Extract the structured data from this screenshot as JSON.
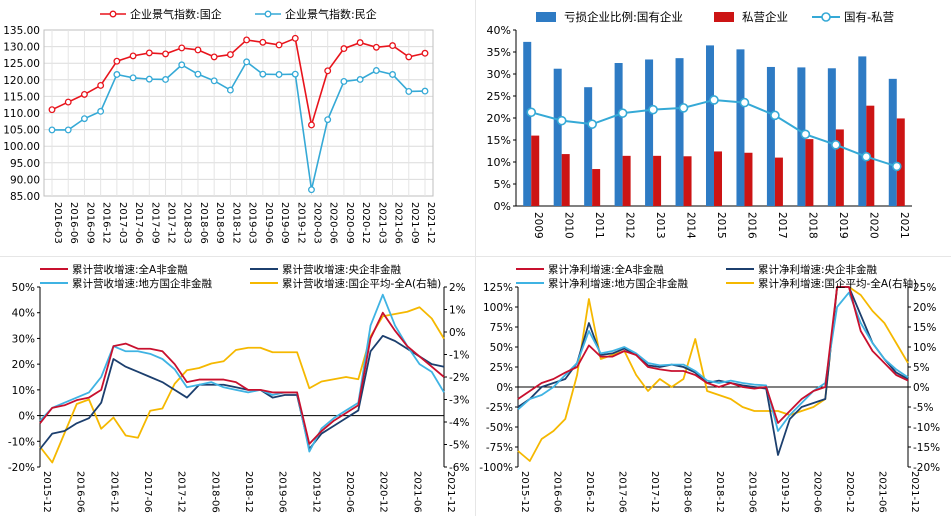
{
  "chart_data": [
    {
      "type": "line",
      "panel": "top-left",
      "title": "",
      "xlabel": "",
      "ylabel": "",
      "ylim": [
        85,
        135
      ],
      "yticks": [
        "135.00",
        "130.00",
        "125.00",
        "120.00",
        "115.00",
        "110.00",
        "105.00",
        "100.00",
        "95.00",
        "90.00",
        "85.00"
      ],
      "grid": true,
      "legend": "top",
      "x_tick_labels": [
        "2016-03",
        "2016-06",
        "2016-09",
        "2016-12",
        "2017-03",
        "2017-06",
        "2017-09",
        "2017-12",
        "2018-03",
        "2018-06",
        "2018-09",
        "2018-12",
        "2019-03",
        "2019-06",
        "2019-09",
        "2019-12",
        "2020-03",
        "2020-06",
        "2020-09",
        "2020-12",
        "2021-03",
        "2021-06",
        "2021-09",
        "2021-12"
      ],
      "series": [
        {
          "name": "企业景气指数:国企",
          "color": "#e8141c",
          "marker": "circle",
          "values": [
            111.0,
            113.3,
            115.6,
            118.3,
            125.6,
            127.2,
            128.1,
            127.8,
            129.6,
            129.0,
            126.9,
            127.6,
            132.0,
            131.3,
            130.5,
            132.5,
            106.4,
            122.7,
            129.4,
            131.2,
            129.8,
            130.3,
            126.9,
            128.0
          ]
        },
        {
          "name": "企业景气指数:民企",
          "color": "#35a9d6",
          "marker": "circle",
          "values": [
            104.9,
            104.9,
            108.3,
            110.5,
            121.6,
            120.6,
            120.2,
            120.1,
            124.5,
            121.7,
            119.7,
            116.9,
            125.4,
            121.7,
            121.6,
            121.7,
            86.9,
            108.0,
            119.5,
            120.1,
            122.8,
            121.6,
            116.5,
            116.6
          ]
        }
      ]
    },
    {
      "type": "bar",
      "panel": "top-right",
      "title": "",
      "xlabel": "",
      "ylabel": "",
      "ylim": [
        0,
        40
      ],
      "yticks": [
        "40%",
        "35%",
        "30%",
        "25%",
        "20%",
        "15%",
        "10%",
        "5%",
        "0%"
      ],
      "grid": false,
      "legend": "top",
      "categories": [
        "2009",
        "2010",
        "2011",
        "2012",
        "2013",
        "2014",
        "2015",
        "2016",
        "2017",
        "2018",
        "2019",
        "2020",
        "2021"
      ],
      "series": [
        {
          "name": "亏损企业比例:国有企业",
          "kind": "bar",
          "color": "#2e7bc4",
          "values": [
            37.3,
            31.2,
            27.0,
            32.5,
            33.3,
            33.6,
            36.5,
            35.6,
            31.6,
            31.5,
            31.3,
            34.0,
            28.9
          ]
        },
        {
          "name": "私营企业",
          "kind": "bar",
          "color": "#cc1414",
          "values": [
            16.0,
            11.8,
            8.4,
            11.4,
            11.4,
            11.3,
            12.4,
            12.1,
            11.0,
            15.2,
            17.4,
            22.8,
            19.9
          ]
        },
        {
          "name": "国有-私营",
          "kind": "line",
          "color": "#35a9d6",
          "marker": "hollow-circle",
          "values": [
            21.3,
            19.4,
            18.6,
            21.1,
            21.9,
            22.3,
            24.1,
            23.5,
            20.6,
            16.3,
            13.9,
            11.2,
            9.0
          ]
        }
      ]
    },
    {
      "type": "line",
      "panel": "bottom-left",
      "title": "",
      "xlabel": "",
      "ylabel": "",
      "ylim": [
        -20,
        50
      ],
      "yticks": [
        "50%",
        "40%",
        "30%",
        "20%",
        "10%",
        "0%",
        "-10%",
        "-20%"
      ],
      "y2lim": [
        -6,
        2
      ],
      "y2ticks": [
        "2%",
        "1%",
        "0%",
        "-1%",
        "-2%",
        "-3%",
        "-4%",
        "-5%",
        "-6%"
      ],
      "grid": false,
      "legend": "top",
      "x_tick_labels": [
        "2015-12",
        "2016-06",
        "2016-12",
        "2017-06",
        "2017-12",
        "2018-06",
        "2018-12",
        "2019-06",
        "2019-12",
        "2020-06",
        "2020-12",
        "2021-06",
        "2021-12"
      ],
      "series": [
        {
          "name": "累计营收增速:全A非金融",
          "color": "#c8102e",
          "axis": "left",
          "values": [
            -3,
            3,
            4,
            6,
            7,
            10,
            27,
            28,
            26,
            26,
            25,
            20,
            13,
            14,
            14,
            14,
            13,
            10,
            10,
            9,
            9,
            9,
            -11,
            -6,
            -2,
            1,
            4,
            30,
            40,
            33,
            27,
            23,
            19,
            15
          ]
        },
        {
          "name": "累计营收增速:央企非金融",
          "color": "#1c3f6e",
          "axis": "left",
          "values": [
            -13,
            -7,
            -6,
            -3,
            -1,
            5,
            22,
            19,
            17,
            15,
            13,
            10,
            7,
            12,
            12,
            12,
            11,
            10,
            10,
            7,
            8,
            8,
            -13,
            -7,
            -4,
            -1,
            2,
            25,
            31,
            29,
            26,
            23,
            20,
            19
          ]
        },
        {
          "name": "累计营收增速:地方国企非金融",
          "color": "#3fb3e3",
          "axis": "left",
          "values": [
            -2,
            3,
            5,
            7,
            9,
            15,
            27,
            25,
            25,
            24,
            22,
            18,
            11,
            12,
            13,
            11,
            10,
            9,
            10,
            8,
            9,
            9,
            -14,
            -5,
            -1,
            2,
            5,
            35,
            47,
            35,
            27,
            20,
            17,
            9
          ]
        },
        {
          "name": "累计营收增速:国企平均-全A(右轴)",
          "color": "#f5b800",
          "axis": "right",
          "values": [
            -5.1,
            -5.8,
            -4.5,
            -3.2,
            -3.0,
            -4.3,
            -3.8,
            -4.6,
            -4.7,
            -3.5,
            -3.4,
            -2.3,
            -1.7,
            -1.6,
            -1.4,
            -1.3,
            -0.8,
            -0.7,
            -0.7,
            -0.9,
            -0.9,
            -0.9,
            -2.5,
            -2.2,
            -2.1,
            -2.0,
            -2.1,
            -0.2,
            0.7,
            0.8,
            0.9,
            1.1,
            0.6,
            -0.3
          ]
        }
      ]
    },
    {
      "type": "line",
      "panel": "bottom-right",
      "title": "",
      "xlabel": "",
      "ylabel": "",
      "ylim": [
        -100,
        125
      ],
      "yticks": [
        "125%",
        "100%",
        "75%",
        "50%",
        "25%",
        "0%",
        "-25%",
        "-50%",
        "-75%",
        "-100%"
      ],
      "y2lim": [
        -20,
        25
      ],
      "y2ticks": [
        "25%",
        "20%",
        "15%",
        "10%",
        "5%",
        "0%",
        "-5%",
        "-10%",
        "-15%",
        "-20%"
      ],
      "grid": false,
      "legend": "top",
      "x_tick_labels": [
        "2015-12",
        "2016-06",
        "2016-12",
        "2017-06",
        "2017-12",
        "2018-06",
        "2018-12",
        "2019-06",
        "2019-12",
        "2020-06",
        "2020-12",
        "2021-06",
        "2021-12"
      ],
      "series": [
        {
          "name": "累计净利增速:全A非金融",
          "color": "#c8102e",
          "axis": "left",
          "values": [
            -15,
            -5,
            5,
            10,
            18,
            25,
            52,
            38,
            38,
            45,
            40,
            25,
            22,
            20,
            20,
            15,
            5,
            0,
            5,
            0,
            -2,
            0,
            -45,
            -30,
            -15,
            -5,
            0,
            125,
            125,
            70,
            45,
            30,
            15,
            8
          ]
        },
        {
          "name": "累计净利增速:央企非金融",
          "color": "#1c3f6e",
          "axis": "left",
          "values": [
            -25,
            -15,
            0,
            5,
            10,
            30,
            80,
            40,
            42,
            48,
            40,
            27,
            25,
            28,
            25,
            18,
            5,
            8,
            5,
            2,
            0,
            -2,
            -85,
            -40,
            -25,
            -20,
            -15,
            125,
            125,
            90,
            55,
            35,
            18,
            10
          ]
        },
        {
          "name": "累计净利增速:地方国企非金融",
          "color": "#3fb3e3",
          "axis": "left",
          "values": [
            -28,
            -15,
            -10,
            0,
            15,
            30,
            70,
            42,
            45,
            50,
            42,
            30,
            27,
            28,
            28,
            20,
            8,
            5,
            8,
            5,
            3,
            2,
            -55,
            -35,
            -20,
            -5,
            5,
            100,
            118,
            80,
            55,
            35,
            22,
            12
          ]
        },
        {
          "name": "累计净利增速:国企平均-全A(右轴)",
          "color": "#f5b800",
          "axis": "right",
          "values": [
            -16,
            -18.5,
            -13,
            -11,
            -8,
            3,
            22,
            7,
            8,
            9,
            3,
            -1,
            2,
            0,
            2,
            12,
            -1,
            -2,
            -3,
            -5,
            -6,
            -6,
            -6,
            -7,
            -6,
            -5,
            -3,
            25,
            25,
            23,
            19,
            16,
            11,
            6
          ]
        }
      ]
    }
  ]
}
